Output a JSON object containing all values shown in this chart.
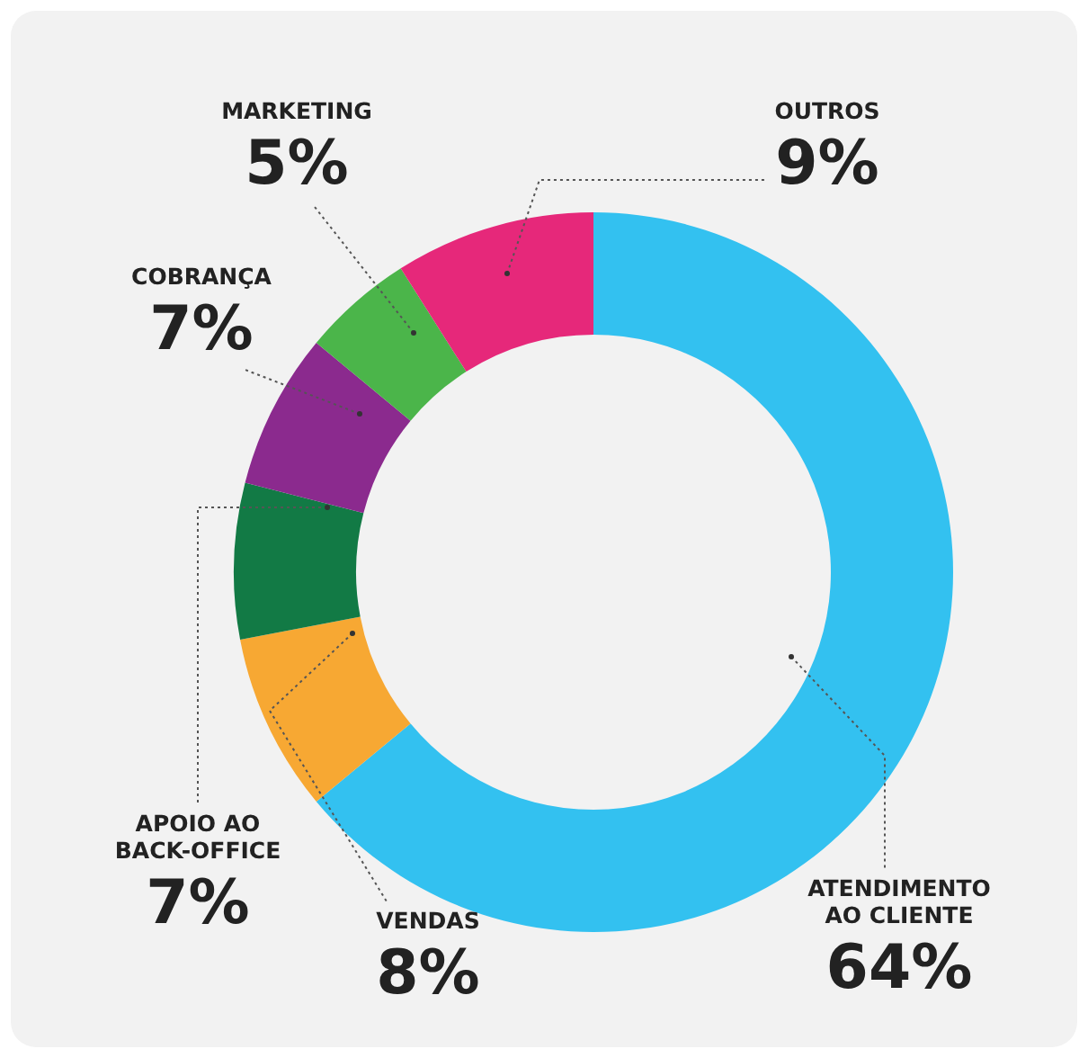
{
  "chart_data": {
    "type": "donut",
    "categories": [
      "ATENDIMENTO AO CLIENTE",
      "VENDAS",
      "APOIO AO BACK-OFFICE",
      "COBRANÇA",
      "MARKETING",
      "OUTROS"
    ],
    "values": [
      64,
      8,
      7,
      7,
      5,
      9
    ],
    "value_labels": [
      "64%",
      "8%",
      "7%",
      "7%",
      "5%",
      "9%"
    ],
    "colors": [
      "#33c1f0",
      "#f7a833",
      "#127a45",
      "#8b2a8e",
      "#4bb54a",
      "#e6287a"
    ]
  }
}
